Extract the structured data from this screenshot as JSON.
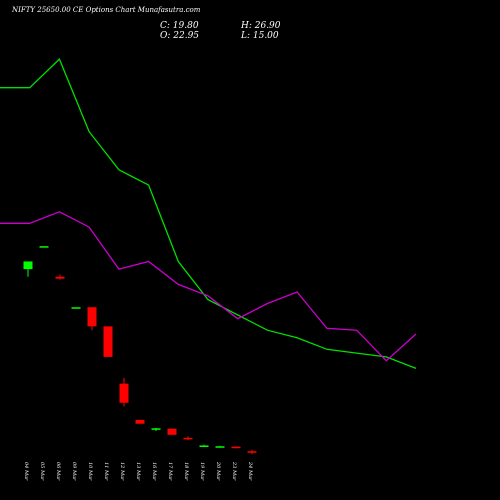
{
  "header": {
    "title": "NIFTY 25650.00  CE Options  Chart Munafasutra.com",
    "close": "C: 19.80",
    "open": "O: 22.95",
    "high": "H: 26.90",
    "low": "L: 15.00"
  },
  "chart_data": {
    "type": "candlestick",
    "title": "NIFTY 25650.00  CE Options  Chart Munafasutra.com",
    "categories": [
      "04 Mar",
      "05 Mar",
      "06 Mar",
      "09 Mar",
      "10 Mar",
      "11 Mar",
      "12 Mar",
      "13 Mar",
      "16 Mar",
      "17 Mar",
      "18 Mar",
      "19 Mar",
      "20 Mar",
      "23 Mar",
      "24 Mar"
    ],
    "ylim": [
      0,
      1100
    ],
    "grid": false,
    "colors": {
      "up": "#00ff00",
      "down": "#ff0000",
      "ma_green": "#00e000",
      "ma_magenta": "#cc00cc",
      "background": "#000000",
      "text": "#ffffff"
    },
    "candles": [
      {
        "date": "04 Mar",
        "open": 500,
        "high": 520,
        "low": 480,
        "close": 520
      },
      {
        "date": "05 Mar",
        "open": 560,
        "high": 560,
        "low": 560,
        "close": 560
      },
      {
        "date": "06 Mar",
        "open": 480,
        "high": 486,
        "low": 472,
        "close": 475
      },
      {
        "date": "09 Mar",
        "open": 400,
        "high": 400,
        "low": 400,
        "close": 400
      },
      {
        "date": "10 Mar",
        "open": 400,
        "high": 400,
        "low": 340,
        "close": 350
      },
      {
        "date": "11 Mar",
        "open": 350,
        "high": 350,
        "low": 280,
        "close": 270
      },
      {
        "date": "12 Mar",
        "open": 200,
        "high": 215,
        "low": 140,
        "close": 150
      },
      {
        "date": "13 Mar",
        "open": 105,
        "high": 105,
        "low": 95,
        "close": 95
      },
      {
        "date": "16 Mar",
        "open": 81,
        "high": 84,
        "low": 76,
        "close": 83
      },
      {
        "date": "17 Mar",
        "open": 82,
        "high": 82,
        "low": 66,
        "close": 66
      },
      {
        "date": "18 Mar",
        "open": 58,
        "high": 62,
        "low": 52,
        "close": 55
      },
      {
        "date": "19 Mar",
        "open": 36,
        "high": 40,
        "low": 34,
        "close": 38
      },
      {
        "date": "20 Mar",
        "open": 36,
        "high": 37,
        "low": 35,
        "close": 36
      },
      {
        "date": "23 Mar",
        "open": 35,
        "high": 35,
        "low": 30,
        "close": 31
      },
      {
        "date": "24 Mar",
        "open": 22.95,
        "high": 26.9,
        "low": 15.0,
        "close": 19.8
      }
    ],
    "series": [
      {
        "values": [
          975,
          975,
          1050,
          860,
          760,
          720,
          520,
          420,
          380,
          340,
          320,
          290,
          280,
          270,
          240
        ]
      },
      {
        "values": [
          620,
          620,
          650,
          610,
          500,
          520,
          460,
          430,
          370,
          410,
          440,
          345,
          340,
          260,
          330
        ]
      }
    ]
  }
}
